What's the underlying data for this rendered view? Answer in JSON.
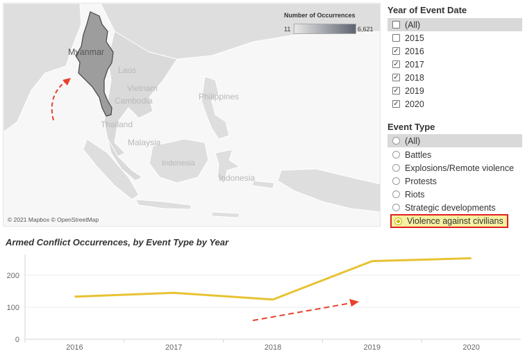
{
  "map": {
    "labels": {
      "myanmar": "Myanmar",
      "laos": "Laos",
      "vietnam": "Vietnam",
      "cambodia": "Cambodia",
      "thailand": "Thailand",
      "philippines": "Philippines",
      "malaysia": "Malaysia",
      "indonesia_west": "Indonesia",
      "indonesia_east": "Indonesia"
    },
    "attribution": "© 2021 Mapbox © OpenStreetMap",
    "legend": {
      "title": "Number of Occurrences",
      "min": "11",
      "max": "6,621"
    },
    "colors": {
      "land": "#dcdcdc",
      "highlight": "#9c9c9c",
      "annotation_arrow": "#e8402a"
    }
  },
  "year_filter": {
    "title": "Year of Event Date",
    "options": [
      {
        "label": "(All)",
        "checked": false
      },
      {
        "label": "2015",
        "checked": false
      },
      {
        "label": "2016",
        "checked": true
      },
      {
        "label": "2017",
        "checked": true
      },
      {
        "label": "2018",
        "checked": true
      },
      {
        "label": "2019",
        "checked": true
      },
      {
        "label": "2020",
        "checked": true
      }
    ]
  },
  "event_filter": {
    "title": "Event Type",
    "options": [
      {
        "label": "(All)",
        "selected": false
      },
      {
        "label": "Battles",
        "selected": false
      },
      {
        "label": "Explosions/Remote violence",
        "selected": false
      },
      {
        "label": "Protests",
        "selected": false
      },
      {
        "label": "Riots",
        "selected": false
      },
      {
        "label": "Strategic developments",
        "selected": false
      },
      {
        "label": "Violence against civilians",
        "selected": true
      }
    ]
  },
  "chart_data": {
    "type": "line",
    "title": "Armed Conflict Occurrences, by Event Type by Year",
    "categories": [
      "2016",
      "2017",
      "2018",
      "2019",
      "2020"
    ],
    "series": [
      {
        "values": [
          133,
          145,
          124,
          244,
          253
        ],
        "color": "#e8c232"
      }
    ],
    "ylim": [
      0,
      265
    ],
    "yticks": [
      0,
      100,
      200
    ],
    "grid": true
  }
}
